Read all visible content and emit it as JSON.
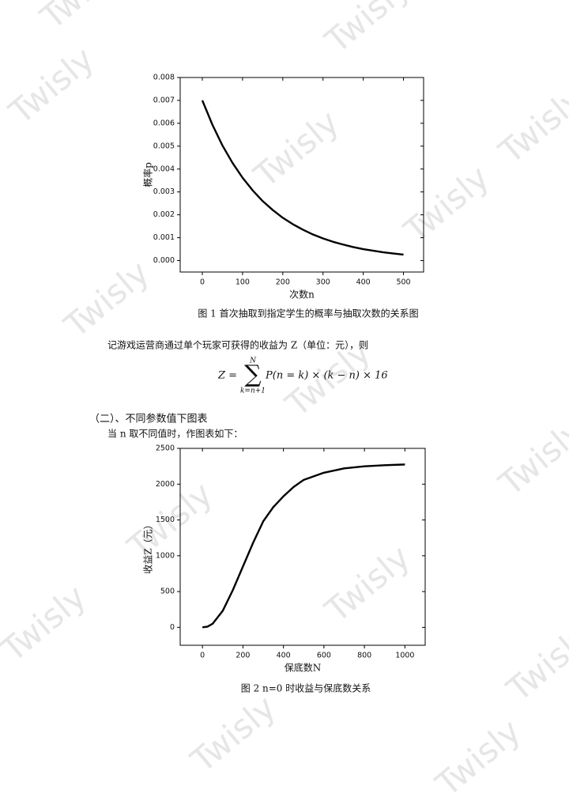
{
  "watermark": "Twisly",
  "document": {
    "paragraph1": "记游戏运营商通过单个玩家可获得的收益为 Z（单位：元），则",
    "formula": {
      "lhs": "Z =",
      "sum": "∑",
      "upper": "N",
      "lower": "k=n+1",
      "body": "P(n = k) × (k − n) × 16"
    },
    "heading": "（二）、不同参数值下图表",
    "paragraph2": "当 n 取不同值时，作图表如下："
  },
  "chart_data": [
    {
      "type": "line",
      "caption": "图 1  首次抽取到指定学生的概率与抽取次数的关系图",
      "xlabel": "次数n",
      "ylabel": "概率p",
      "color": "#000000",
      "x": [
        0,
        25,
        50,
        75,
        100,
        125,
        150,
        175,
        200,
        225,
        250,
        275,
        300,
        325,
        350,
        375,
        400,
        425,
        450,
        475,
        500
      ],
      "values": [
        0.007,
        0.00594,
        0.00503,
        0.00427,
        0.00362,
        0.00307,
        0.0026,
        0.00221,
        0.00187,
        0.00159,
        0.00135,
        0.00114,
        0.00097,
        0.00082,
        0.0007,
        0.00059,
        0.0005,
        0.00043,
        0.00036,
        0.00031,
        0.00026
      ],
      "xlim": [
        -55,
        550
      ],
      "xticks": [
        0,
        100,
        200,
        300,
        400,
        500
      ],
      "ylim": [
        -0.0005,
        0.008
      ],
      "yticks": [
        {
          "value": 0,
          "label": "0.000"
        },
        {
          "value": 0.001,
          "label": "0.001"
        },
        {
          "value": 0.002,
          "label": "0.002"
        },
        {
          "value": 0.003,
          "label": "0.003"
        },
        {
          "value": 0.004,
          "label": "0.004"
        },
        {
          "value": 0.005,
          "label": "0.005"
        },
        {
          "value": 0.006,
          "label": "0.006"
        },
        {
          "value": 0.007,
          "label": "0.007"
        },
        {
          "value": 0.008,
          "label": "0.008"
        }
      ]
    },
    {
      "type": "line",
      "caption": "图 2  n=0 时收益与保底数关系",
      "xlabel": "保底数N",
      "ylabel": "收益Z（元）",
      "color": "#000000",
      "x": [
        0,
        25,
        50,
        100,
        150,
        200,
        250,
        300,
        350,
        400,
        450,
        500,
        600,
        700,
        800,
        900,
        1000
      ],
      "values": [
        0,
        10,
        50,
        230,
        520,
        850,
        1180,
        1480,
        1680,
        1830,
        1960,
        2060,
        2160,
        2220,
        2250,
        2265,
        2275
      ],
      "xlim": [
        -110,
        1100
      ],
      "xticks": [
        0,
        200,
        400,
        600,
        800,
        1000
      ],
      "ylim": [
        -250,
        2500
      ],
      "yticks": [
        0,
        500,
        1000,
        1500,
        2000,
        2500
      ]
    }
  ]
}
